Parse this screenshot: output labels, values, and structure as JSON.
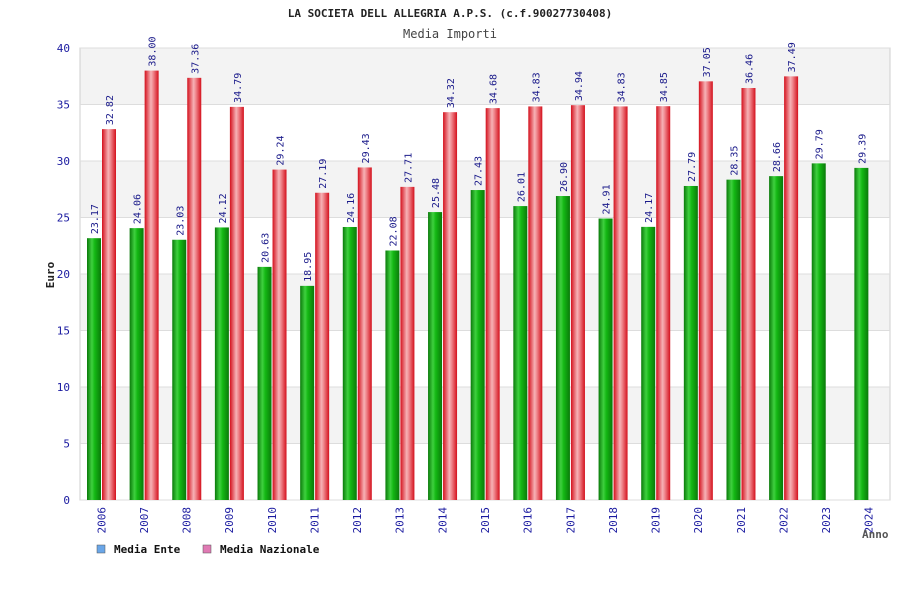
{
  "chart_data": {
    "type": "bar",
    "title": "LA SOCIETA DELL ALLEGRIA A.P.S. (c.f.90027730408)",
    "subtitle": "Media Importi",
    "xlabel": "Anno",
    "ylabel": "Euro",
    "ylim": [
      0,
      40
    ],
    "yticks": [
      0,
      5,
      10,
      15,
      20,
      25,
      30,
      35,
      40
    ],
    "categories": [
      "2006",
      "2007",
      "2008",
      "2009",
      "2010",
      "2011",
      "2012",
      "2013",
      "2014",
      "2015",
      "2016",
      "2017",
      "2018",
      "2019",
      "2020",
      "2021",
      "2022",
      "2023",
      "2024"
    ],
    "series": [
      {
        "name": "Media Ente",
        "values": [
          23.17,
          24.06,
          23.03,
          24.12,
          20.63,
          18.95,
          24.16,
          22.08,
          25.48,
          27.43,
          26.01,
          26.9,
          24.91,
          24.17,
          27.79,
          28.35,
          28.66,
          29.79,
          29.39
        ],
        "labels": [
          "23.17",
          "24.06",
          "23.03",
          "24.12",
          "20.63",
          "18.95",
          "24.16",
          "22.08",
          "25.48",
          "27.43",
          "26.01",
          "26.90",
          "24.91",
          "24.17",
          "27.79",
          "28.35",
          "28.66",
          "29.79",
          "29.39"
        ],
        "color": "#1db21d",
        "legend_color": "#6aa6e8"
      },
      {
        "name": "Media Nazionale",
        "values": [
          32.82,
          38.0,
          37.36,
          34.79,
          29.24,
          27.19,
          29.43,
          27.71,
          34.32,
          34.68,
          34.83,
          34.94,
          34.83,
          34.85,
          37.05,
          36.46,
          37.49,
          null,
          null
        ],
        "labels": [
          "32.82",
          "38.00",
          "37.36",
          "34.79",
          "29.24",
          "27.19",
          "29.43",
          "27.71",
          "34.32",
          "34.68",
          "34.83",
          "34.94",
          "34.83",
          "34.85",
          "37.05",
          "36.46",
          "37.49",
          "",
          ""
        ],
        "color": "#e8323c",
        "legend_color": "#e07ab4"
      }
    ],
    "grid": true,
    "legend_position": "bottom-left"
  }
}
